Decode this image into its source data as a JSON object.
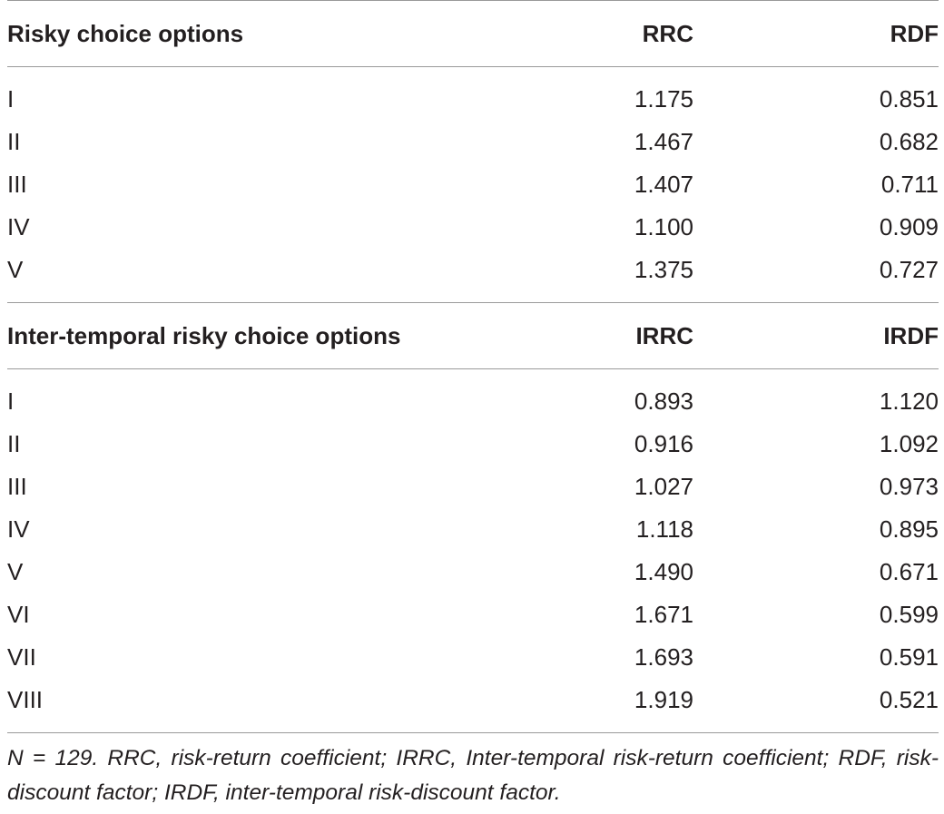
{
  "section1": {
    "header": {
      "label": "Risky choice options",
      "col1": "RRC",
      "col2": "RDF"
    },
    "rows": [
      {
        "option": "I",
        "v1": "1.175",
        "v2": "0.851"
      },
      {
        "option": "II",
        "v1": "1.467",
        "v2": "0.682"
      },
      {
        "option": "III",
        "v1": "1.407",
        "v2": "0.711"
      },
      {
        "option": "IV",
        "v1": "1.100",
        "v2": "0.909"
      },
      {
        "option": "V",
        "v1": "1.375",
        "v2": "0.727"
      }
    ]
  },
  "section2": {
    "header": {
      "label": "Inter-temporal risky choice options",
      "col1": "IRRC",
      "col2": "IRDF"
    },
    "rows": [
      {
        "option": "I",
        "v1": "0.893",
        "v2": "1.120"
      },
      {
        "option": "II",
        "v1": "0.916",
        "v2": "1.092"
      },
      {
        "option": "III",
        "v1": "1.027",
        "v2": "0.973"
      },
      {
        "option": "IV",
        "v1": "1.118",
        "v2": "0.895"
      },
      {
        "option": "V",
        "v1": "1.490",
        "v2": "0.671"
      },
      {
        "option": "VI",
        "v1": "1.671",
        "v2": "0.599"
      },
      {
        "option": "VII",
        "v1": "1.693",
        "v2": "0.591"
      },
      {
        "option": "VIII",
        "v1": "1.919",
        "v2": "0.521"
      }
    ]
  },
  "footnote": "N = 129. RRC, risk-return coefficient; IRRC, Inter-temporal risk-return coefficient; RDF, risk-discount factor; IRDF, inter-temporal risk-discount factor."
}
